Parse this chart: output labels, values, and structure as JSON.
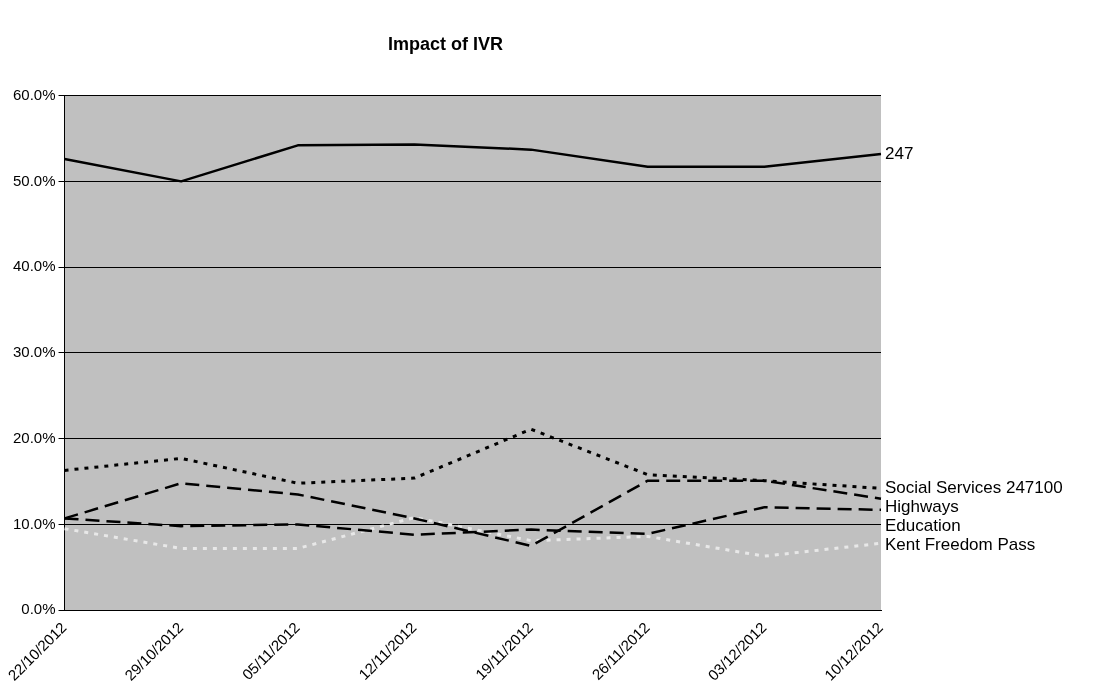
{
  "chart_data": {
    "type": "line",
    "title": "Impact of IVR",
    "categories": [
      "22/10/2012",
      "29/10/2012",
      "05/11/2012",
      "12/11/2012",
      "19/11/2012",
      "26/11/2012",
      "03/12/2012",
      "10/12/2012"
    ],
    "series": [
      {
        "name": "247",
        "color": "#000000",
        "line_style": "solid",
        "values": [
          52.6,
          50.0,
          54.2,
          54.3,
          53.7,
          51.7,
          51.7,
          53.2
        ]
      },
      {
        "name": "Social Services 247100",
        "color": "#000000",
        "line_style": "dotted",
        "values": [
          16.3,
          17.7,
          14.8,
          15.4,
          21.1,
          15.8,
          15.1,
          14.2
        ]
      },
      {
        "name": "Highways",
        "color": "#000000",
        "line_style": "dashed",
        "values": [
          10.7,
          14.8,
          13.5,
          10.7,
          7.5,
          15.1,
          15.1,
          13.0
        ]
      },
      {
        "name": "Education",
        "color": "#000000",
        "line_style": "dashed",
        "values": [
          10.7,
          9.8,
          10.0,
          8.8,
          9.4,
          8.9,
          12.0,
          11.7
        ]
      },
      {
        "name": "Kent Freedom Pass",
        "color": "#e8e8e8",
        "line_style": "dotted",
        "values": [
          9.5,
          7.2,
          7.2,
          10.8,
          8.1,
          8.6,
          6.3,
          7.8
        ]
      }
    ],
    "ylim": [
      0,
      60
    ],
    "yticks": [
      {
        "value": 0,
        "label": "0.0%"
      },
      {
        "value": 10,
        "label": "10.0%"
      },
      {
        "value": 20,
        "label": "20.0%"
      },
      {
        "value": 30,
        "label": "30.0%"
      },
      {
        "value": 40,
        "label": "40.0%"
      },
      {
        "value": 50,
        "label": "50.0%"
      },
      {
        "value": 60,
        "label": "60.0%"
      }
    ],
    "grid": "y",
    "legend": false,
    "marker": "none"
  }
}
